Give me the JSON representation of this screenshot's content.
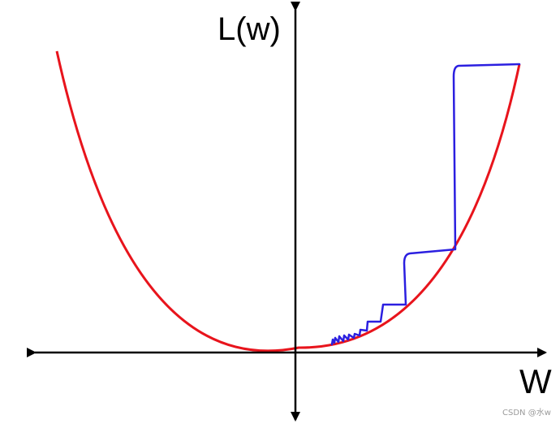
{
  "labels": {
    "y_axis": "L(w)",
    "x_axis": "W",
    "watermark": "CSDN @水w"
  },
  "colors": {
    "axes": "#000000",
    "loss_curve": "#e8141c",
    "update_path": "#2b1fe0"
  }
}
